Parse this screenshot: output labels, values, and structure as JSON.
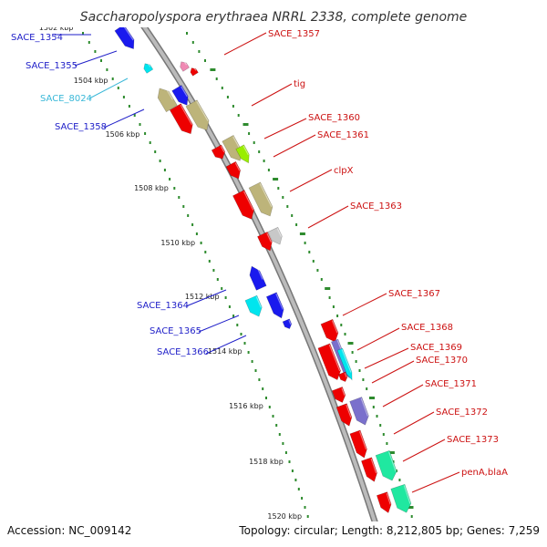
{
  "title": "Saccharopolyspora erythraea NRRL 2338, complete genome",
  "accession": "Accession: NC_009142",
  "topology": "Topology: circular; Length: 8,212,805 bp; Genes: 7,259",
  "colors": {
    "backbone": "#999999",
    "dots": "#2e8b2e",
    "reverse_label": "#1e1ec8",
    "forward_label": "#cc1111",
    "cyan_label": "#3ab8d8",
    "red": "#ee0000",
    "blue": "#1a1aee",
    "khaki": "#bdb47a",
    "cyan": "#00e5ee",
    "grey": "#c8c8c8",
    "lime": "#99ee00",
    "teal": "#20e8a0",
    "purple": "#7a70cc",
    "pink": "#f08ab4"
  },
  "ticks": [
    {
      "label": "1502 kbp",
      "show": true
    },
    {
      "label": "1504 kbp",
      "show": true
    },
    {
      "label": "1506 kbp",
      "show": true
    },
    {
      "label": "1508 kbp",
      "show": true
    },
    {
      "label": "1510 kbp",
      "show": true
    },
    {
      "label": "1512 kbp",
      "show": true
    },
    {
      "label": "1514 kbp",
      "show": true
    },
    {
      "label": "1516 kbp",
      "show": true
    },
    {
      "label": "1518 kbp",
      "show": true
    },
    {
      "label": "1520 kbp",
      "show": true
    }
  ],
  "left_labels": [
    {
      "text": "SACE_1354",
      "color": "reverse_label"
    },
    {
      "text": "SACE_1355",
      "color": "reverse_label"
    },
    {
      "text": "SACE_8024",
      "color": "cyan_label"
    },
    {
      "text": "SACE_1358",
      "color": "reverse_label"
    },
    {
      "text": "SACE_1364",
      "color": "reverse_label"
    },
    {
      "text": "SACE_1365",
      "color": "reverse_label"
    },
    {
      "text": "SACE_1366",
      "color": "reverse_label"
    }
  ],
  "right_labels": [
    {
      "text": "SACE_1357",
      "color": "forward_label"
    },
    {
      "text": "tig",
      "color": "forward_label"
    },
    {
      "text": "SACE_1360",
      "color": "forward_label"
    },
    {
      "text": "SACE_1361",
      "color": "forward_label"
    },
    {
      "text": "clpX",
      "color": "forward_label"
    },
    {
      "text": "SACE_1363",
      "color": "forward_label"
    },
    {
      "text": "SACE_1367",
      "color": "forward_label"
    },
    {
      "text": "SACE_1368",
      "color": "forward_label"
    },
    {
      "text": "SACE_1369",
      "color": "forward_label"
    },
    {
      "text": "SACE_1370",
      "color": "forward_label"
    },
    {
      "text": "SACE_1371",
      "color": "forward_label"
    },
    {
      "text": "SACE_1372",
      "color": "forward_label"
    },
    {
      "text": "SACE_1373",
      "color": "forward_label"
    },
    {
      "text": "penA,blaA",
      "color": "forward_label"
    }
  ]
}
